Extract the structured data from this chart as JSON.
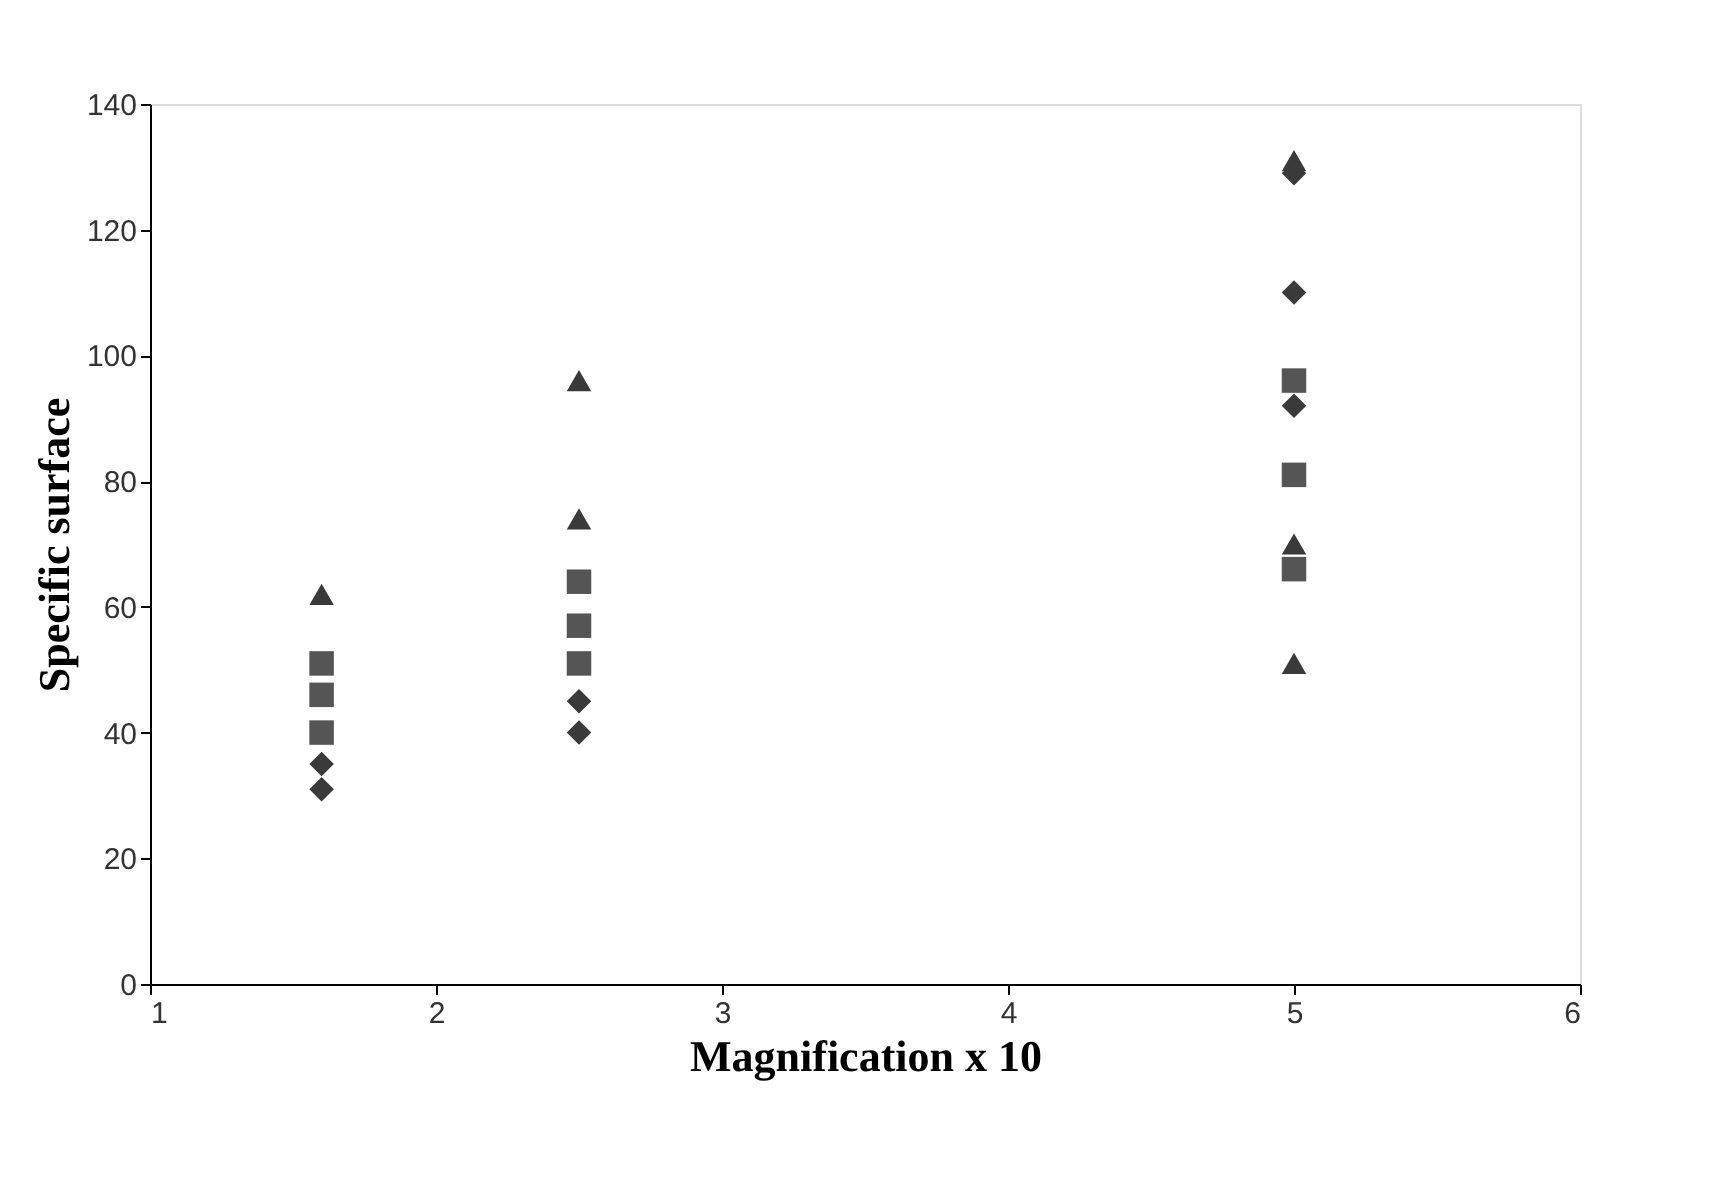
{
  "chart_data": {
    "type": "scatter",
    "xlabel": "Magnification x 10",
    "ylabel": "Specific surface",
    "series": [
      {
        "marker": "diamond",
        "color": "#3a3a3a",
        "x": [
          1.6,
          1.6,
          2.5,
          2.5,
          5,
          5,
          5
        ],
        "values": [
          35,
          31,
          45,
          40,
          129,
          110,
          92
        ]
      },
      {
        "marker": "square",
        "color": "#555555",
        "x": [
          1.6,
          1.6,
          1.6,
          2.5,
          2.5,
          2.5,
          5,
          5,
          5
        ],
        "values": [
          51,
          46,
          40,
          64,
          57,
          51,
          96,
          81,
          66
        ]
      },
      {
        "marker": "triangle",
        "color": "#3a3a3a",
        "x": [
          1.6,
          2.5,
          2.5,
          5,
          5,
          5
        ],
        "values": [
          62,
          96,
          74,
          131,
          70,
          51
        ]
      }
    ],
    "xlim": [
      1,
      6
    ],
    "xticks": [
      1,
      2,
      3,
      4,
      5,
      6
    ],
    "ylim": [
      0,
      140
    ],
    "yticks": [
      0,
      20,
      40,
      60,
      80,
      100,
      120,
      140
    ],
    "grid": false
  }
}
